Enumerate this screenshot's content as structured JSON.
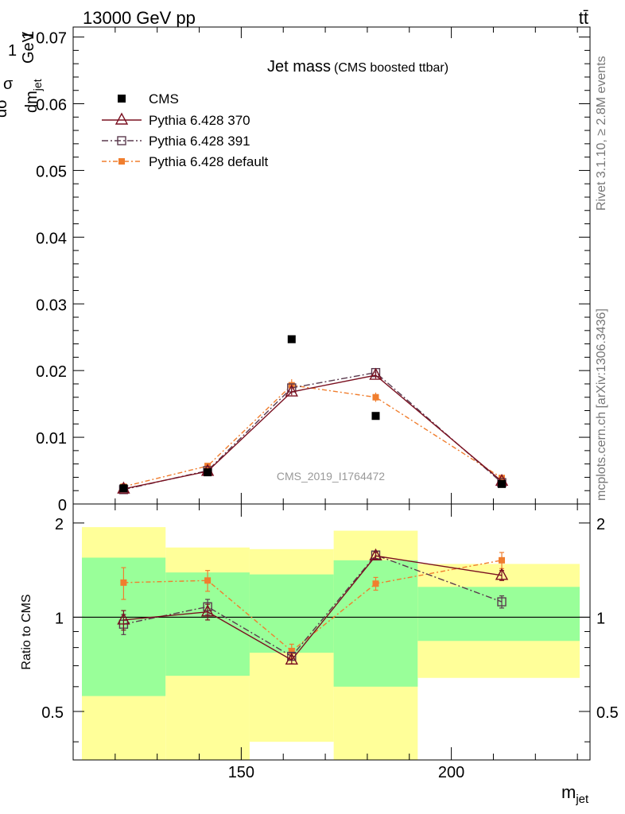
{
  "header": {
    "energy_label": "13000 GeV pp",
    "process_label": "tt̄"
  },
  "side_labels": {
    "rivet": "Rivet 3.1.10, ≥ 2.8M events",
    "mcplots": "mcplots.cern.ch [arXiv:1306.3436]"
  },
  "analysis_id": "CMS_2019_I1764472",
  "colors": {
    "cms": "#000000",
    "p370": "#7a1020",
    "p391": "#5a3a4e",
    "pdef": "#f07e2e",
    "band_inner": "#99ff99",
    "band_outer": "#ffff99"
  },
  "chart_data": [
    {
      "type": "scatter",
      "title": "Jet mass",
      "subtitle": "(CMS boosted ttbar)",
      "ylabel_top": "1",
      "ylabel_num": "dσ",
      "ylabel_sigma": "σ",
      "ylabel_den": "dm",
      "ylabel_den_sub": "jet",
      "ylabel_unit_num": "1",
      "ylabel_unit": "GeV",
      "xlabel": "",
      "xlim": [
        110,
        233
      ],
      "ylim": [
        0,
        0.0715
      ],
      "yticks": [
        "0",
        "0.01",
        "0.02",
        "0.03",
        "0.04",
        "0.05",
        "0.06",
        "0.07"
      ],
      "x": [
        122,
        142,
        162,
        182,
        212
      ],
      "series": [
        {
          "name": "CMS",
          "values": [
            0.00235,
            0.00475,
            0.0247,
            0.0132,
            0.003
          ],
          "errors": [
            0.0001,
            0.0001,
            0.0003,
            0.0003,
            0.0001
          ]
        },
        {
          "name": "Pythia 6.428 370",
          "values": [
            0.00225,
            0.0049,
            0.0168,
            0.0193,
            0.0034
          ],
          "errors": [
            0.0002,
            0.0003,
            0.0005,
            0.0005,
            0.0002
          ]
        },
        {
          "name": "Pythia 6.428 391",
          "values": [
            0.00215,
            0.005,
            0.0174,
            0.0197,
            0.0032
          ],
          "errors": [
            0.0002,
            0.0003,
            0.0005,
            0.0005,
            0.0002
          ]
        },
        {
          "name": "Pythia 6.428 default",
          "values": [
            0.0026,
            0.0057,
            0.0178,
            0.016,
            0.0039
          ],
          "errors": [
            0.0002,
            0.0003,
            0.0009,
            0.0007,
            0.0003
          ]
        }
      ]
    },
    {
      "type": "scatter",
      "ylabel": "Ratio to CMS",
      "xlabel": "m",
      "xlabel_sub": "jet",
      "ylim": [
        0.35,
        2.3
      ],
      "yticks": [
        "0.5",
        "1",
        "2"
      ],
      "xticks": [
        "150",
        "200"
      ],
      "x": [
        122,
        142,
        162,
        182,
        212
      ],
      "bins": [
        {
          "low": 110,
          "high": 132,
          "inner": [
            0.56,
            1.55
          ],
          "outer": [
            0.35,
            1.94
          ]
        },
        {
          "low": 132,
          "high": 152,
          "inner": [
            0.65,
            1.39
          ],
          "outer": [
            0.35,
            1.67
          ]
        },
        {
          "low": 152,
          "high": 172,
          "inner": [
            0.77,
            1.37
          ],
          "outer": [
            0.4,
            1.65
          ]
        },
        {
          "low": 172,
          "high": 192,
          "inner": [
            0.6,
            1.52
          ],
          "outer": [
            0.35,
            1.89
          ]
        },
        {
          "low": 192,
          "high": 233,
          "inner": [
            0.84,
            1.25
          ],
          "outer": [
            0.64,
            1.48
          ]
        }
      ],
      "series": [
        {
          "name": "Pythia 6.428 370",
          "values": [
            0.98,
            1.04,
            0.73,
            1.57,
            1.36
          ],
          "errors": [
            0.07,
            0.06,
            0.02,
            0.04,
            0.05
          ]
        },
        {
          "name": "Pythia 6.428 391",
          "values": [
            0.95,
            1.08,
            0.75,
            1.58,
            1.12
          ],
          "errors": [
            0.07,
            0.06,
            0.02,
            0.04,
            0.05
          ]
        },
        {
          "name": "Pythia 6.428 default",
          "values": [
            1.29,
            1.31,
            0.78,
            1.28,
            1.52
          ],
          "errors": [
            0.15,
            0.1,
            0.04,
            0.06,
            0.09
          ]
        }
      ]
    }
  ]
}
